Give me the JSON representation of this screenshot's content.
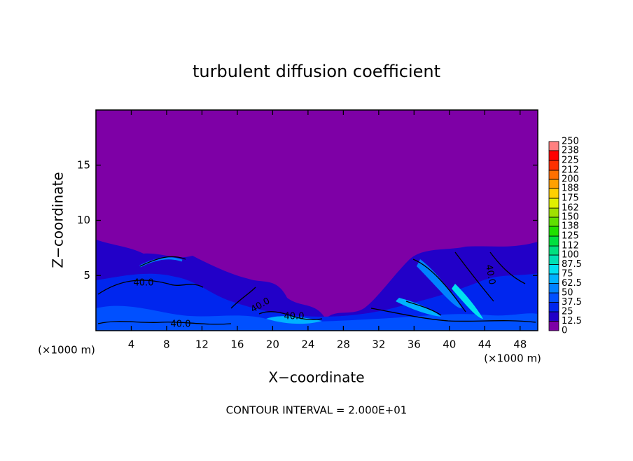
{
  "chart_data": {
    "type": "contour",
    "title": "turbulent diffusion coefficient",
    "xlabel": "X−coordinate",
    "ylabel": "Z−coordinate",
    "x_unit_left": "(×1000 m)",
    "x_unit_right": "(×1000 m)",
    "footnote": "CONTOUR INTERVAL = 2.000E+01",
    "xlim": [
      0,
      50
    ],
    "xticks": [
      4,
      8,
      12,
      16,
      20,
      24,
      28,
      32,
      36,
      40,
      44,
      48
    ],
    "ylim": [
      0,
      20
    ],
    "yticks": [
      5,
      10,
      15
    ],
    "contour_labels": [
      "40.0",
      "40.0",
      "40.0",
      "40.0",
      "40.0"
    ],
    "colorbar": {
      "levels": [
        0,
        12.5,
        25,
        37.5,
        50,
        62.5,
        75,
        87.5,
        100,
        112,
        125,
        138,
        150,
        162,
        175,
        188,
        200,
        212,
        225,
        238,
        250
      ],
      "colors": [
        "#7e00a6",
        "#2200c8",
        "#0026ee",
        "#0050ff",
        "#0082ff",
        "#00b2ff",
        "#00e0f0",
        "#00e0b4",
        "#00e080",
        "#00e040",
        "#20e000",
        "#60e000",
        "#a0e000",
        "#e0f000",
        "#ffd000",
        "#ffa000",
        "#ff7000",
        "#ff3000",
        "#ff0000",
        "#ff8080"
      ]
    }
  }
}
